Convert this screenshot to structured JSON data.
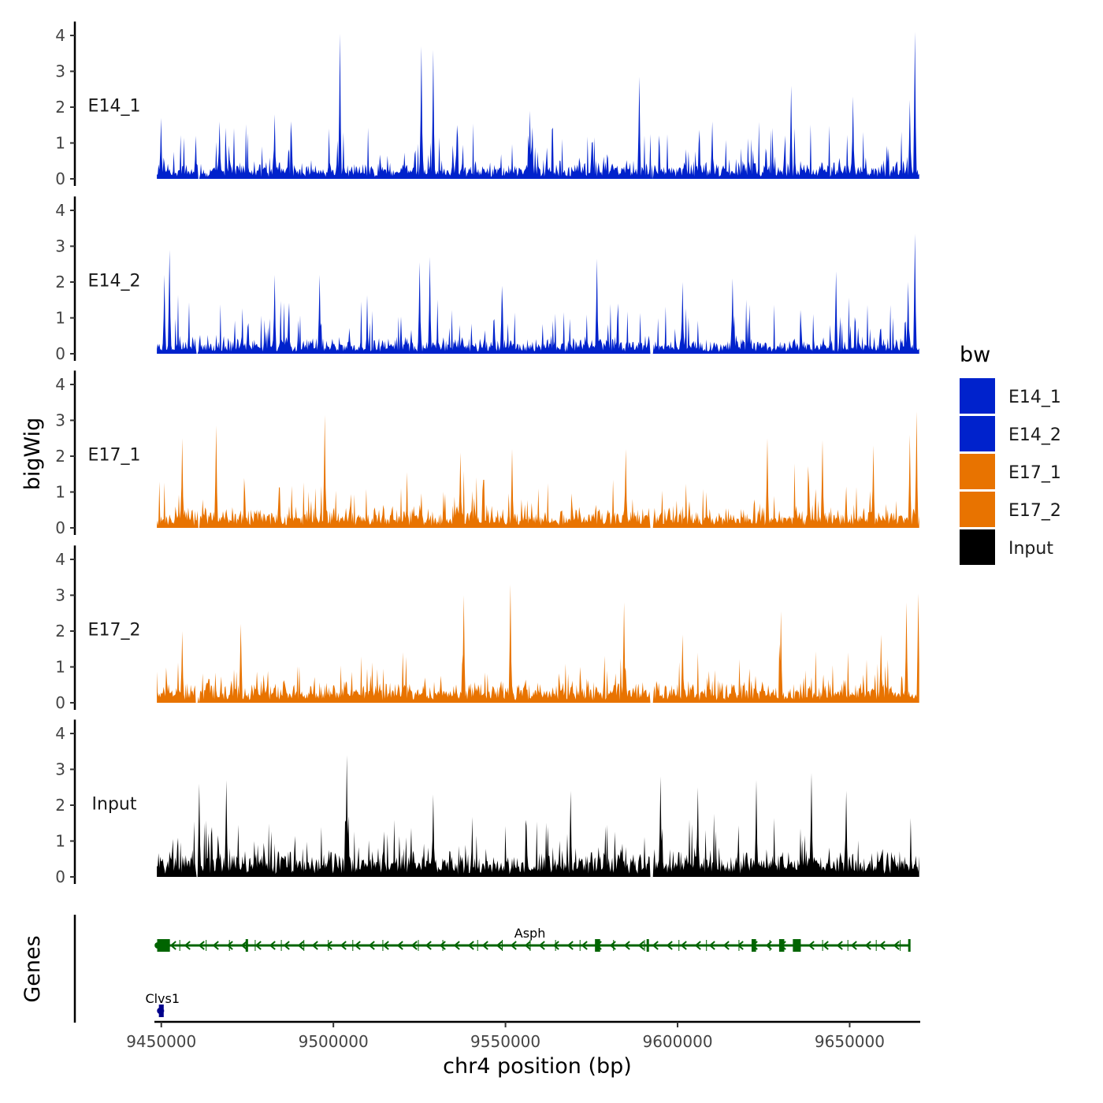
{
  "chart_data": {
    "type": "area",
    "title": "",
    "xlabel": "chr4 position (bp)",
    "ylabel": "bigWig",
    "genes_label": "Genes",
    "xlim": [
      9448000,
      9670500
    ],
    "ylim": [
      0,
      4.3
    ],
    "x_ticks": [
      9450000,
      9500000,
      9550000,
      9600000,
      9650000
    ],
    "x_tick_labels": [
      "9450000",
      "9500000",
      "9550000",
      "9600000",
      "9650000"
    ],
    "y_ticks": [
      0,
      1,
      2,
      3,
      4
    ],
    "y_tick_labels": [
      "0",
      "1",
      "2",
      "3",
      "4"
    ],
    "legend": {
      "title": "bw",
      "position": "right",
      "entries": [
        {
          "name": "E14_1",
          "color": "#0022CC"
        },
        {
          "name": "E14_2",
          "color": "#0022CC"
        },
        {
          "name": "E17_1",
          "color": "#E87300"
        },
        {
          "name": "E17_2",
          "color": "#E87300"
        },
        {
          "name": "Input",
          "color": "#000000"
        }
      ]
    },
    "series": [
      {
        "name": "E14_1",
        "color": "#0022CC",
        "seed": 11,
        "base": 0.55,
        "spike": 1.0,
        "peaks": [
          [
            9450000,
            1.7
          ],
          [
            9460000,
            1.2
          ],
          [
            9467000,
            1.6
          ],
          [
            9483000,
            1.8
          ],
          [
            9502000,
            4.05
          ],
          [
            9525500,
            3.7
          ],
          [
            9529000,
            3.6
          ],
          [
            9536000,
            1.5
          ],
          [
            9557000,
            1.9
          ],
          [
            9589000,
            2.85
          ],
          [
            9610000,
            1.6
          ],
          [
            9633000,
            2.6
          ],
          [
            9651000,
            2.3
          ],
          [
            9669000,
            4.1
          ],
          [
            9667500,
            2.2
          ]
        ]
      },
      {
        "name": "E14_2",
        "color": "#0022CC",
        "seed": 23,
        "base": 0.55,
        "spike": 1.0,
        "peaks": [
          [
            9452500,
            2.9
          ],
          [
            9451000,
            2.2
          ],
          [
            9483000,
            2.2
          ],
          [
            9496000,
            2.2
          ],
          [
            9525000,
            2.55
          ],
          [
            9528000,
            2.7
          ],
          [
            9549000,
            1.9
          ],
          [
            9576500,
            2.65
          ],
          [
            9601500,
            2.0
          ],
          [
            9616000,
            2.1
          ],
          [
            9646000,
            2.3
          ],
          [
            9669000,
            3.35
          ],
          [
            9667000,
            2.0
          ]
        ]
      },
      {
        "name": "E17_1",
        "color": "#E87300",
        "seed": 37,
        "base": 0.7,
        "spike": 0.9,
        "peaks": [
          [
            9456000,
            2.5
          ],
          [
            9466000,
            2.85
          ],
          [
            9497500,
            3.15
          ],
          [
            9537000,
            2.1
          ],
          [
            9552000,
            2.2
          ],
          [
            9585000,
            2.2
          ],
          [
            9626000,
            2.5
          ],
          [
            9642000,
            2.45
          ],
          [
            9657000,
            2.3
          ],
          [
            9669500,
            3.25
          ],
          [
            9667500,
            2.6
          ]
        ]
      },
      {
        "name": "E17_2",
        "color": "#E87300",
        "seed": 53,
        "base": 0.7,
        "spike": 0.9,
        "peaks": [
          [
            9456000,
            2.0
          ],
          [
            9473000,
            2.2
          ],
          [
            9538000,
            3.0
          ],
          [
            9551500,
            3.3
          ],
          [
            9584500,
            2.8
          ],
          [
            9601500,
            1.9
          ],
          [
            9630000,
            2.55
          ],
          [
            9659000,
            1.9
          ],
          [
            9666500,
            2.8
          ],
          [
            9670000,
            3.05
          ]
        ]
      },
      {
        "name": "Input",
        "color": "#000000",
        "seed": 71,
        "base": 0.85,
        "spike": 1.0,
        "peaks": [
          [
            9461000,
            2.6
          ],
          [
            9469000,
            2.7
          ],
          [
            9504000,
            3.4
          ],
          [
            9529000,
            2.3
          ],
          [
            9569000,
            2.4
          ],
          [
            9595000,
            2.8
          ],
          [
            9606000,
            2.5
          ],
          [
            9623000,
            2.7
          ],
          [
            9639000,
            2.9
          ],
          [
            9649000,
            2.4
          ]
        ]
      }
    ],
    "genes": [
      {
        "name": "Asph",
        "start": 9448500,
        "end": 9667500,
        "strand": "-",
        "row": 1,
        "color": "#006400",
        "exons": [
          [
            9448800,
            9452500
          ],
          [
            9474500,
            9475200
          ],
          [
            9591000,
            9591300
          ],
          [
            9576000,
            9577500
          ],
          [
            9621500,
            9622800
          ],
          [
            9629500,
            9631000
          ],
          [
            9633500,
            9635800
          ],
          [
            9667000,
            9667500
          ]
        ]
      },
      {
        "name": "Clvs1",
        "start": 9449200,
        "end": 9450800,
        "strand": "+",
        "row": 2,
        "color": "#00008B",
        "exons": [
          [
            9449300,
            9450700
          ]
        ]
      }
    ]
  }
}
